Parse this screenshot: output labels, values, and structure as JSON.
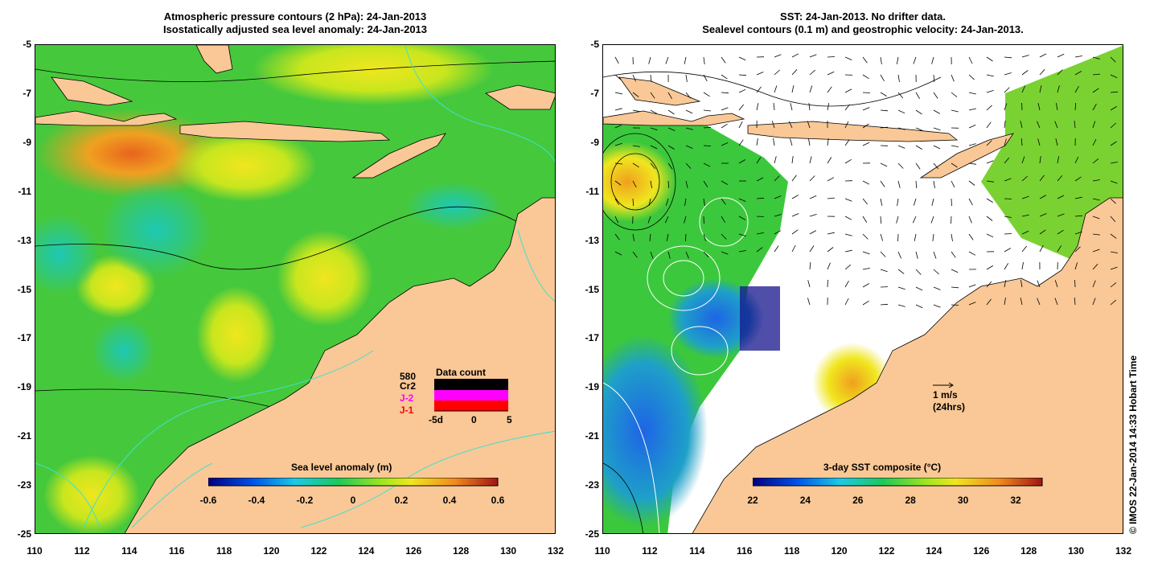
{
  "left_panel": {
    "title_line1": "Atmospheric pressure contours (2 hPa): 24-Jan-2013",
    "title_line2": "Isostatically adjusted sea level anomaly: 24-Jan-2013",
    "colorbar_label": "Sea level anomaly (m)",
    "colorbar_ticks": [
      "-0.6",
      "-0.4",
      "-0.2",
      "0",
      "0.2",
      "0.4",
      "0.6"
    ],
    "data_count": {
      "title": "Data count",
      "count_value": "580",
      "satellites": [
        {
          "name": "Cr2",
          "color": "#000000"
        },
        {
          "name": "J-2",
          "color": "#ff00ff"
        },
        {
          "name": "J-1",
          "color": "#ff0000"
        }
      ],
      "axis_ticks": [
        "-5d",
        "0",
        "5"
      ]
    }
  },
  "right_panel": {
    "title_line1": "SST: 24-Jan-2013. No drifter data.",
    "title_line2": "Sealevel contours (0.1 m) and geostrophic velocity: 24-Jan-2013.",
    "colorbar_label": "3-day SST composite (°C)",
    "colorbar_ticks": [
      "22",
      "24",
      "26",
      "28",
      "30",
      "32"
    ],
    "velocity_scale": {
      "line1": "1 m/s",
      "line2": "(24hrs)"
    }
  },
  "axes": {
    "lat_ticks": [
      "-5",
      "-7",
      "-9",
      "-11",
      "-13",
      "-15",
      "-17",
      "-19",
      "-21",
      "-23",
      "-25"
    ],
    "lon_ticks": [
      "110",
      "112",
      "114",
      "116",
      "118",
      "120",
      "122",
      "124",
      "126",
      "128",
      "130",
      "132"
    ]
  },
  "credit": "© IMOS 22-Jan-2014 14:33 Hobart Time",
  "colors": {
    "land": "#f9c896",
    "ocean_field": "#4cc832",
    "contour": "#000000",
    "isobath": "#40e0d0"
  }
}
